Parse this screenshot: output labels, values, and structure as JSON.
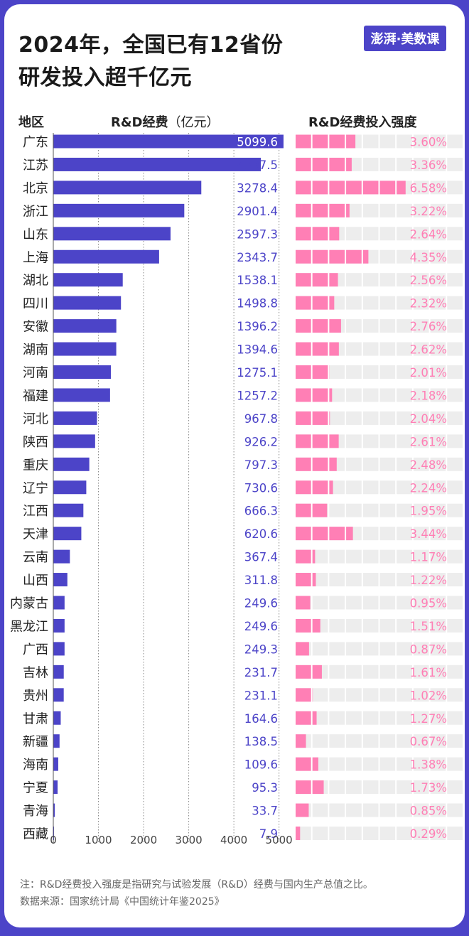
{
  "title": {
    "line1": "2024年，全国已有12省份",
    "line2": "研发投入超千亿元"
  },
  "logo": {
    "text": "澎湃·美数课"
  },
  "headers": {
    "region": "地区",
    "rd_label": "R&D经费",
    "rd_unit": "（亿元）",
    "intensity": "R&D经费投入强度"
  },
  "chart_data": [
    {
      "type": "bar",
      "orientation": "horizontal",
      "ylabel": "R&D经费（亿元）",
      "xlim": [
        0,
        5100
      ],
      "xticks": [
        0,
        1000,
        2000,
        3000,
        4000,
        5000
      ],
      "grid": true,
      "categories": [
        "广东",
        "江苏",
        "北京",
        "浙江",
        "山东",
        "上海",
        "湖北",
        "四川",
        "安徽",
        "湖南",
        "河南",
        "福建",
        "河北",
        "陕西",
        "重庆",
        "辽宁",
        "江西",
        "天津",
        "云南",
        "山西",
        "内蒙古",
        "黑龙江",
        "广西",
        "吉林",
        "贵州",
        "甘肃",
        "新疆",
        "海南",
        "宁夏",
        "青海",
        "西藏"
      ],
      "values": [
        5099.6,
        4597.5,
        3278.4,
        2901.4,
        2597.3,
        2343.7,
        1538.1,
        1498.8,
        1396.2,
        1394.6,
        1275.1,
        1257.2,
        967.8,
        926.2,
        797.3,
        730.6,
        666.3,
        620.6,
        367.4,
        311.8,
        249.6,
        249.6,
        249.3,
        231.7,
        231.1,
        164.6,
        138.5,
        109.6,
        95.3,
        33.7,
        7.9
      ],
      "value_labels": [
        "5099.6",
        "4597.5",
        "3278.4",
        "2901.4",
        "2597.3",
        "2343.7",
        "1538.1",
        "1498.8",
        "1396.2",
        "1394.6",
        "1275.1",
        "1257.2",
        "967.8",
        "926.2",
        "797.3",
        "730.6",
        "666.3",
        "620.6",
        "367.4",
        "311.8",
        "249.6",
        "249.6",
        "249.3",
        "231.7",
        "231.1",
        "164.6",
        "138.5",
        "109.6",
        "95.3",
        "33.7",
        "7.9"
      ]
    },
    {
      "type": "bar",
      "orientation": "horizontal",
      "title": "R&D经费投入强度",
      "unit": "%",
      "xlim": [
        0,
        10
      ],
      "categories": [
        "广东",
        "江苏",
        "北京",
        "浙江",
        "山东",
        "上海",
        "湖北",
        "四川",
        "安徽",
        "湖南",
        "河南",
        "福建",
        "河北",
        "陕西",
        "重庆",
        "辽宁",
        "江西",
        "天津",
        "云南",
        "山西",
        "内蒙古",
        "黑龙江",
        "广西",
        "吉林",
        "贵州",
        "甘肃",
        "新疆",
        "海南",
        "宁夏",
        "青海",
        "西藏"
      ],
      "values": [
        3.6,
        3.36,
        6.58,
        3.22,
        2.64,
        4.35,
        2.56,
        2.32,
        2.76,
        2.62,
        2.01,
        2.18,
        2.04,
        2.61,
        2.48,
        2.24,
        1.95,
        3.44,
        1.17,
        1.22,
        0.95,
        1.51,
        0.87,
        1.61,
        1.02,
        1.27,
        0.67,
        1.38,
        1.73,
        0.85,
        0.29
      ],
      "value_labels": [
        "3.60%",
        "3.36%",
        "6.58%",
        "3.22%",
        "2.64%",
        "4.35%",
        "2.56%",
        "2.32%",
        "2.76%",
        "2.62%",
        "2.01%",
        "2.18%",
        "2.04%",
        "2.61%",
        "2.48%",
        "2.24%",
        "1.95%",
        "3.44%",
        "1.17%",
        "1.22%",
        "0.95%",
        "1.51%",
        "0.87%",
        "1.61%",
        "1.02%",
        "1.27%",
        "0.67%",
        "1.38%",
        "1.73%",
        "0.85%",
        "0.29%"
      ]
    }
  ],
  "notes": {
    "line1": "注：R&D经费投入强度是指研究与试验发展（R&D）经费与国内生产总值之比。",
    "line2": "数据来源：国家统计局《中国统计年鉴2025》"
  },
  "colors": {
    "frame": "#4c44c8",
    "bar": "#4c44c8",
    "intensity": "#ff7fb5",
    "track": "#ededed",
    "value_text_inside": "#ffffff",
    "value_text_outside": "#4c44c8",
    "intensity_text": "#ff7fb5"
  }
}
